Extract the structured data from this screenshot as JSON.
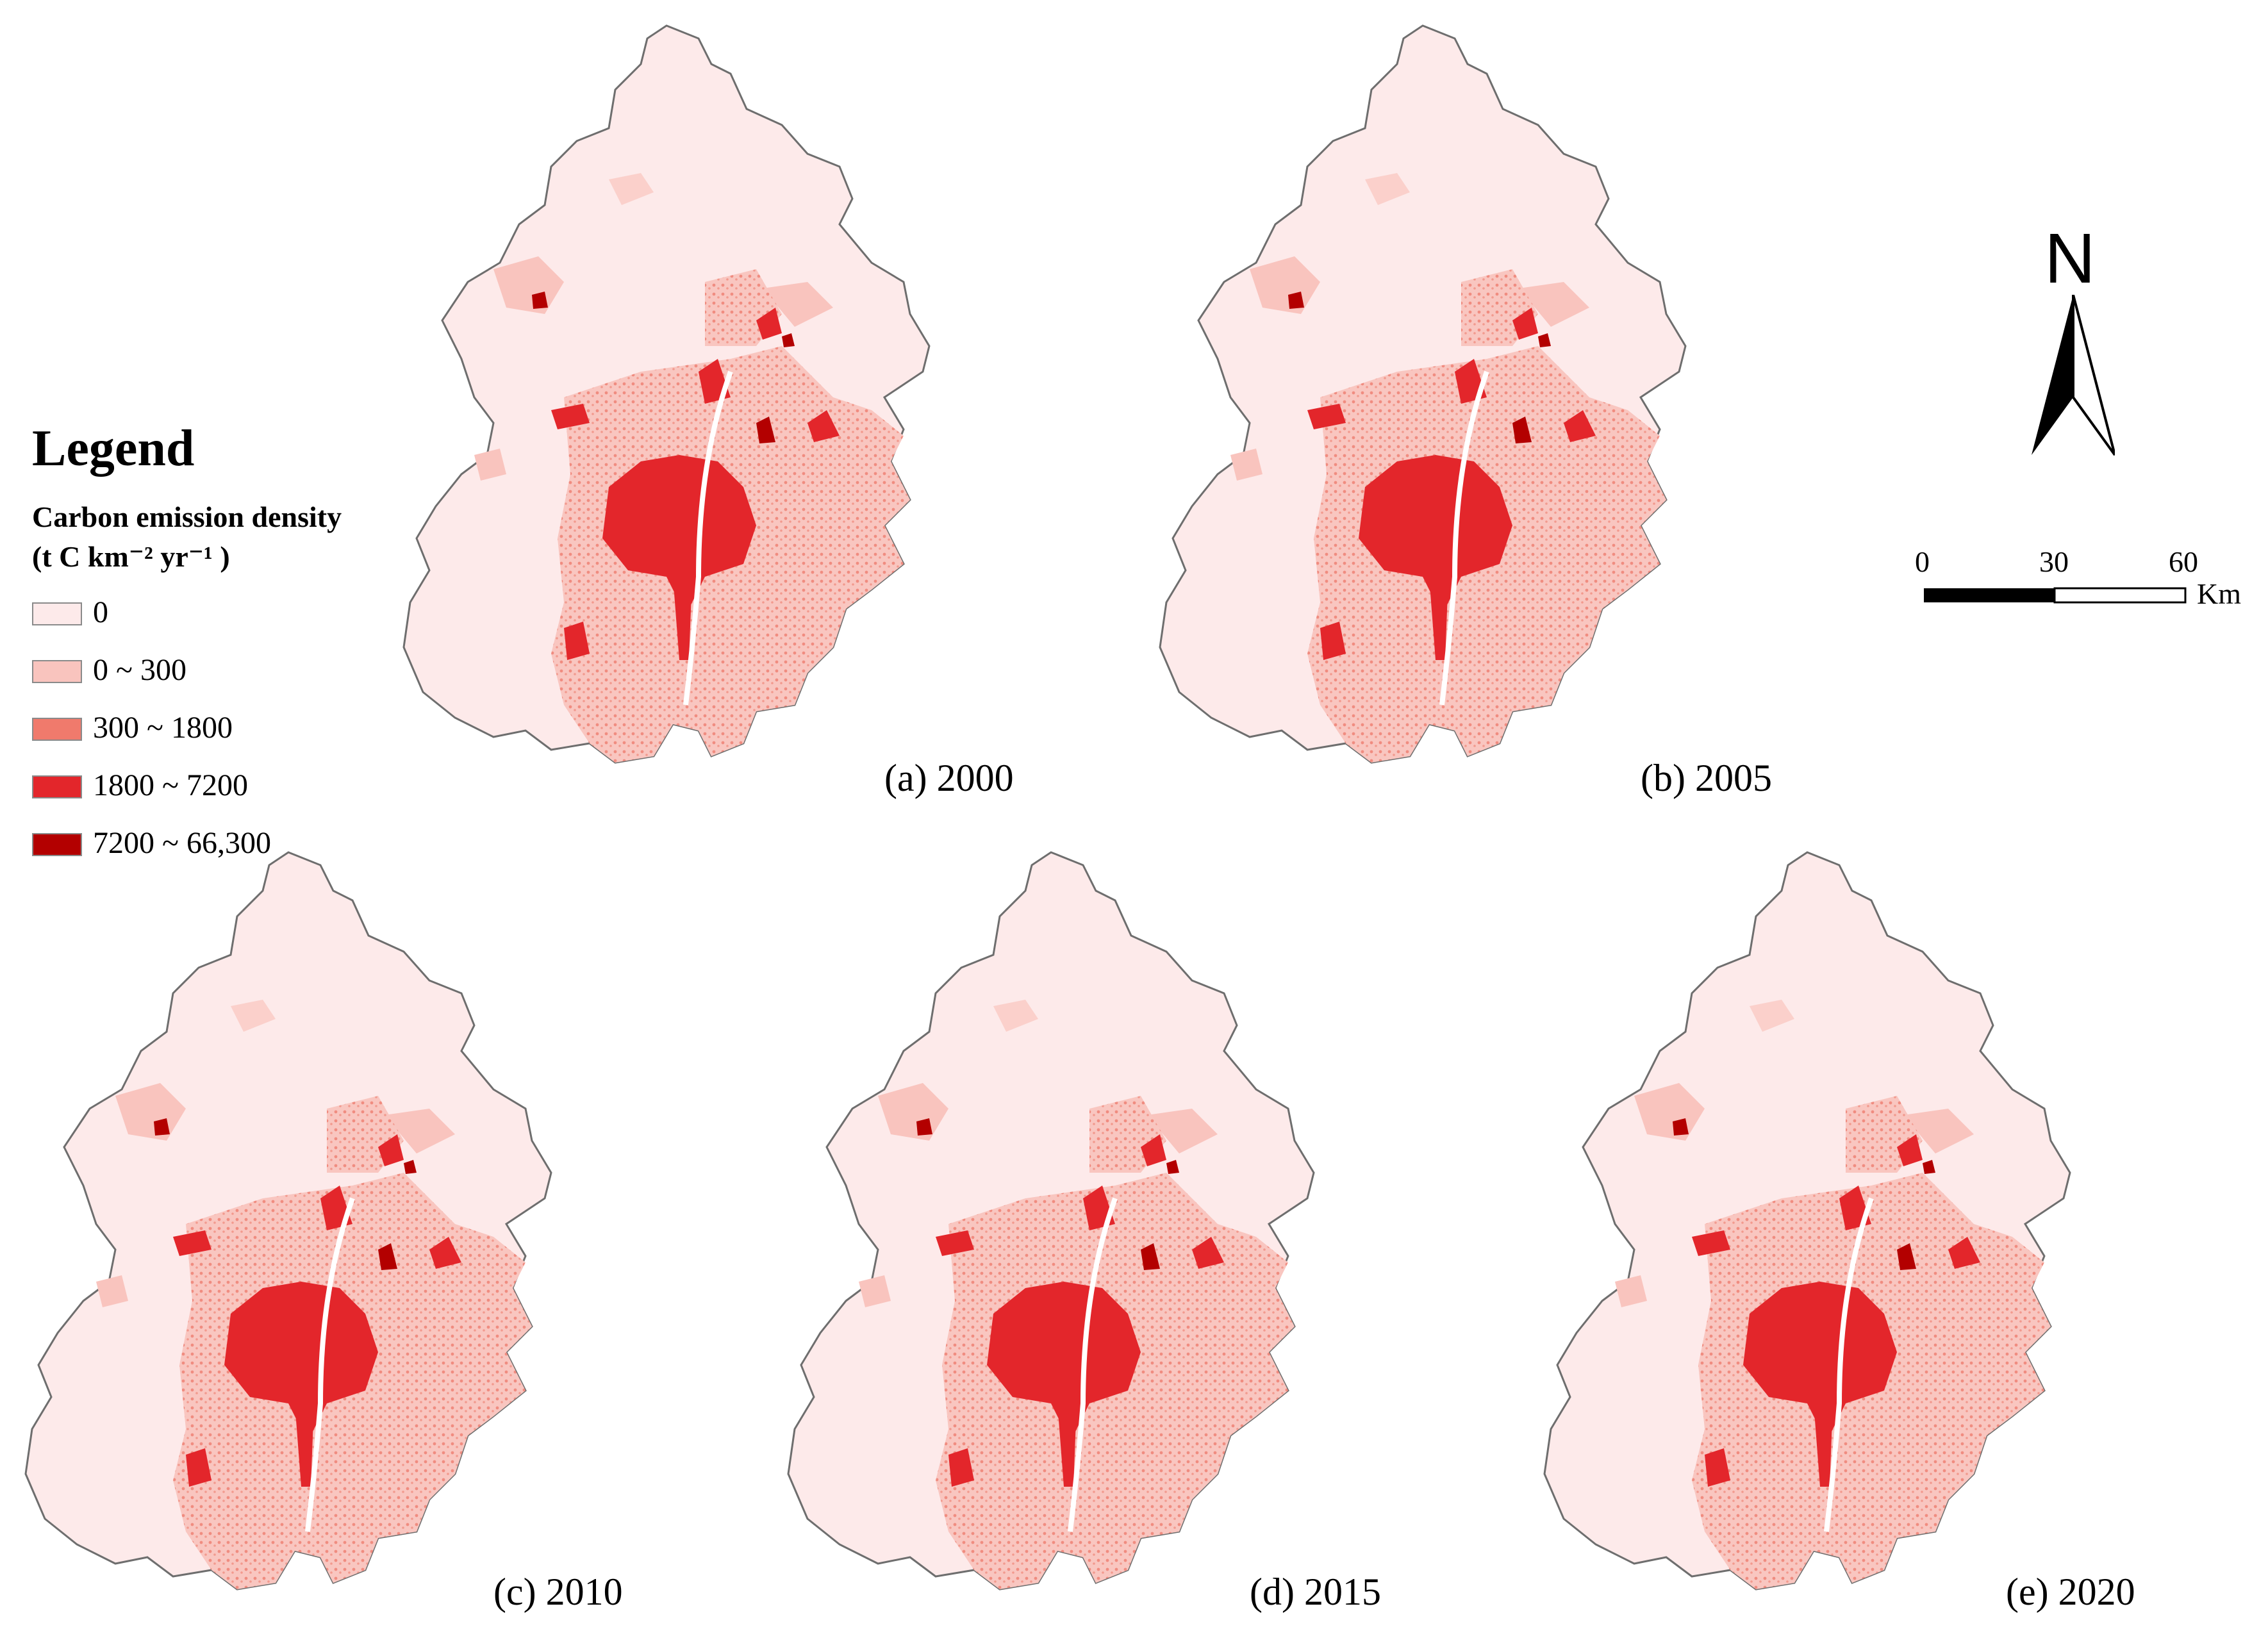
{
  "figure": {
    "legend": {
      "title": "Legend",
      "subtitle_line1": "Carbon emission density",
      "subtitle_line2": "(t C km⁻² yr⁻¹ )",
      "classes": [
        {
          "label": "0",
          "color": "#fdeaea"
        },
        {
          "label": "0 ~ 300",
          "color": "#f9c4be"
        },
        {
          "label": "300 ~ 1800",
          "color": "#f07a6c"
        },
        {
          "label": "1800 ~ 7200",
          "color": "#e3262b"
        },
        {
          "label": "7200 ~ 66,300",
          "color": "#b30000"
        }
      ]
    },
    "panels": [
      {
        "label": "(a) 2000"
      },
      {
        "label": "(b) 2005"
      },
      {
        "label": "(c) 2010"
      },
      {
        "label": "(d) 2015"
      },
      {
        "label": "(e) 2020"
      }
    ],
    "north_arrow": {
      "letter": "N",
      "icon": "north-arrow-icon"
    },
    "scale_bar": {
      "ticks": [
        "0",
        "30",
        "60"
      ],
      "unit": "Km"
    },
    "colors": {
      "boundary": "#6e6e6e",
      "background": "#ffffff"
    }
  }
}
